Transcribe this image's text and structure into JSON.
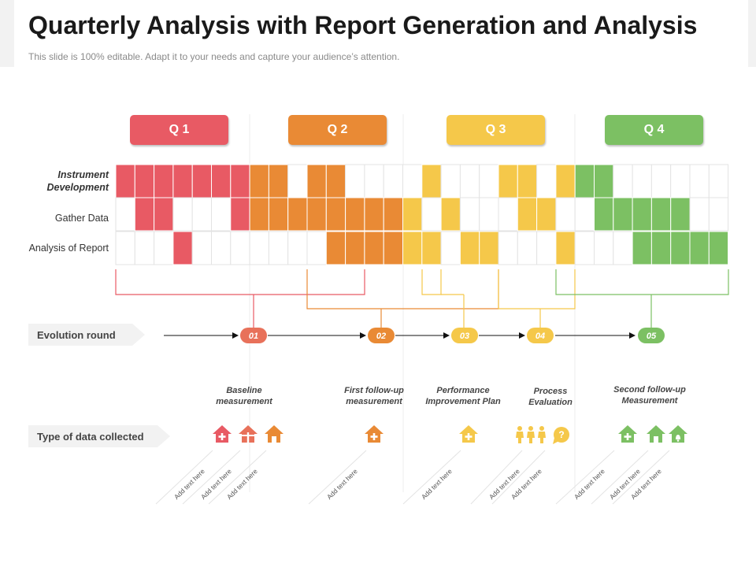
{
  "header": {
    "title": "Quarterly Analysis with Report Generation and Analysis",
    "subtitle": "This slide is 100% editable. Adapt it to your needs and capture your audience’s attention."
  },
  "quarters": [
    {
      "label": "Q 1",
      "color": "#e85a64"
    },
    {
      "label": "Q 2",
      "color": "#e98a35"
    },
    {
      "label": "Q 3",
      "color": "#f5c84a"
    },
    {
      "label": "Q 4",
      "color": "#7cc063"
    }
  ],
  "rows": {
    "instrument": {
      "line1": "Instrument",
      "line2": "Development"
    },
    "gather": "Gather Data",
    "analysis": "Analysis of Report"
  },
  "grid_fills": {
    "instrument": [
      "r",
      "r",
      "r",
      "r",
      "r",
      "r",
      "r",
      "o",
      "o",
      "",
      "o",
      "o",
      "",
      "",
      "",
      "",
      "y",
      "",
      "",
      "",
      "y",
      "y",
      "",
      "y",
      "g",
      "g",
      "",
      "",
      "",
      "",
      "",
      ""
    ],
    "gather": [
      "",
      "r",
      "r",
      "",
      "",
      "",
      "r",
      "o",
      "o",
      "o",
      "o",
      "o",
      "o",
      "o",
      "o",
      "y",
      "",
      "y",
      "",
      "",
      "",
      "y",
      "y",
      "",
      "",
      "g",
      "g",
      "g",
      "g",
      "g",
      "",
      ""
    ],
    "analysis": [
      "",
      "",
      "",
      "r",
      "",
      "",
      "",
      "",
      "",
      "",
      "",
      "o",
      "o",
      "o",
      "o",
      "y",
      "y",
      "",
      "y",
      "y",
      "",
      "",
      "",
      "y",
      "",
      "",
      "",
      "g",
      "g",
      "g",
      "g",
      "g"
    ]
  },
  "evolution": {
    "label": "Evolution round",
    "markers": [
      {
        "label": "01",
        "color": "#e8715a"
      },
      {
        "label": "02",
        "color": "#e98a35"
      },
      {
        "label": "03",
        "color": "#f5c84a"
      },
      {
        "label": "04",
        "color": "#f5c84a"
      },
      {
        "label": "05",
        "color": "#7cc063"
      }
    ]
  },
  "data_type": {
    "label": "Type of data collected"
  },
  "stages": [
    {
      "line1": "Baseline",
      "line2": "measurement"
    },
    {
      "line1": "First follow-up",
      "line2": "measurement"
    },
    {
      "line1": "Performance",
      "line2": "Improvement Plan"
    },
    {
      "line1": "Process",
      "line2": "Evaluation"
    },
    {
      "line1": "Second follow-up",
      "line2": "Measurement"
    }
  ],
  "add_text": [
    "Add text here",
    "Add text here",
    "Add text here",
    "Add text here",
    "Add text here",
    "Add text here",
    "Add text here",
    "Add text here",
    "Add text here",
    "Add text here"
  ]
}
